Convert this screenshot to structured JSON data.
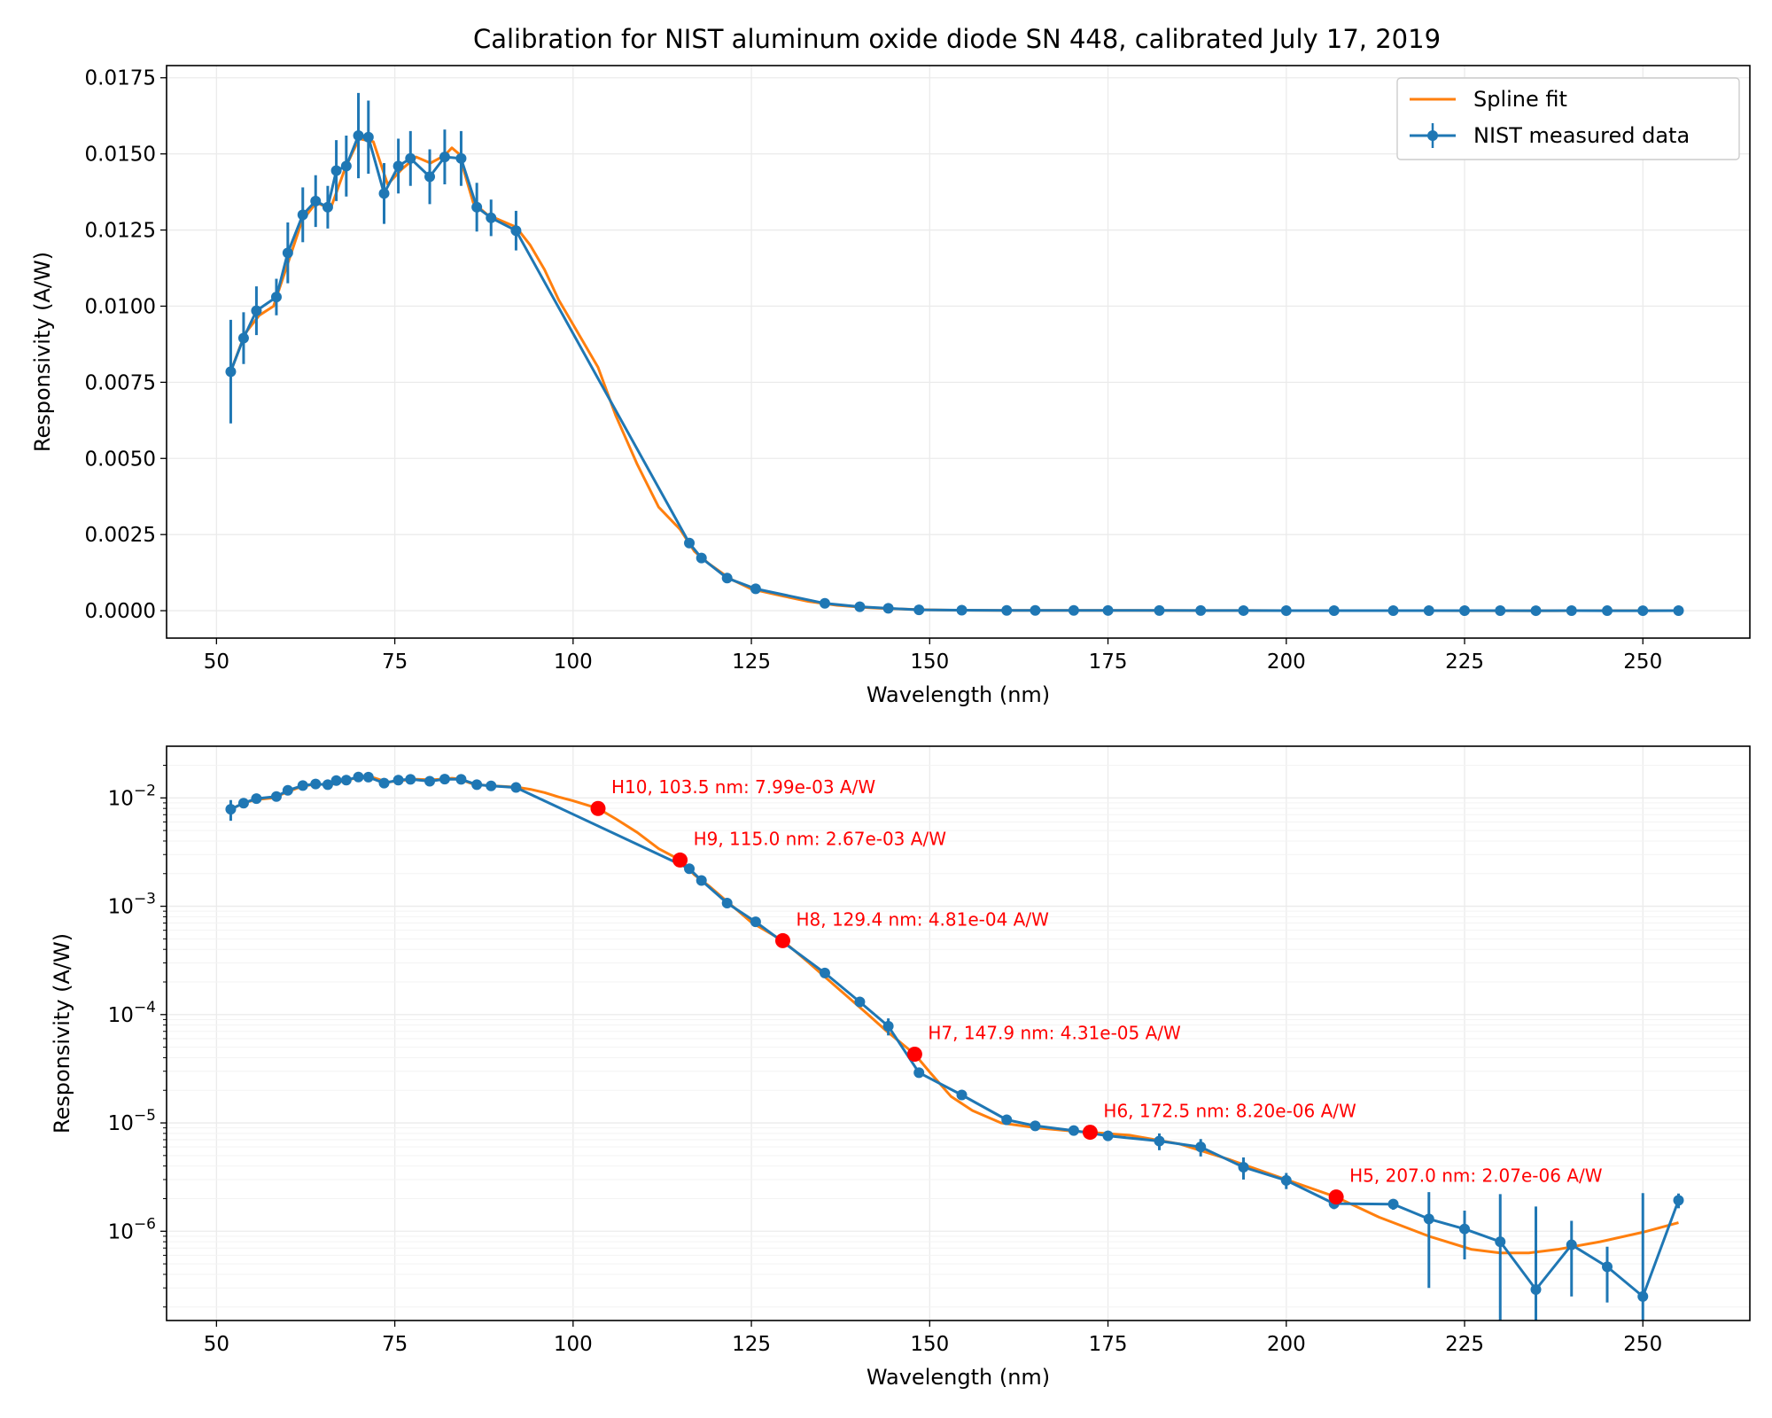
{
  "title": "Calibration for NIST aluminum oxide diode SN 448, calibrated July 17, 2019",
  "colors": {
    "spline": "#ff7f0e",
    "measured": "#1f77b4",
    "highlight": "#ff0000",
    "grid": "#ebebeb"
  },
  "chart_data": [
    {
      "type": "line",
      "scale": "linear",
      "xlabel": "Wavelength (nm)",
      "ylabel": "Responsivity (A/W)",
      "xlim": [
        43,
        265
      ],
      "ylim": [
        -0.0009,
        0.0179
      ],
      "xticks": [
        50,
        75,
        100,
        125,
        150,
        175,
        200,
        225,
        250
      ],
      "yticks": [
        0.0,
        0.0025,
        0.005,
        0.0075,
        0.01,
        0.0125,
        0.015,
        0.0175
      ],
      "ytick_labels": [
        "0.0000",
        "0.0025",
        "0.0050",
        "0.0075",
        "0.0100",
        "0.0125",
        "0.0150",
        "0.0175"
      ],
      "grid": true,
      "legend": {
        "position": "top-right",
        "entries": [
          "Spline fit",
          "NIST measured data"
        ]
      }
    },
    {
      "type": "line",
      "scale": "log",
      "xlabel": "Wavelength (nm)",
      "ylabel": "Responsivity (A/W)",
      "xlim": [
        43,
        265
      ],
      "ylim": [
        1.5e-07,
        0.03
      ],
      "xticks": [
        50,
        75,
        100,
        125,
        150,
        175,
        200,
        225,
        250
      ],
      "yticks": [
        1e-06,
        1e-05,
        0.0001,
        0.001,
        0.01
      ],
      "ytick_labels": [
        "10^-6",
        "10^-5",
        "10^-4",
        "10^-3",
        "10^-2"
      ],
      "grid": true,
      "annotations": [
        {
          "x": 103.5,
          "y": 0.00799,
          "text": "H10, 103.5 nm: 7.99e-03 A/W"
        },
        {
          "x": 115.0,
          "y": 0.00267,
          "text": "H9, 115.0 nm: 2.67e-03 A/W"
        },
        {
          "x": 129.4,
          "y": 0.000481,
          "text": "H8, 129.4 nm: 4.81e-04 A/W"
        },
        {
          "x": 147.9,
          "y": 4.31e-05,
          "text": "H7, 147.9 nm: 4.31e-05 A/W"
        },
        {
          "x": 172.5,
          "y": 8.2e-06,
          "text": "H6, 172.5 nm: 8.20e-06 A/W"
        },
        {
          "x": 207.0,
          "y": 2.07e-06,
          "text": "H5, 207.0 nm: 2.07e-06 A/W"
        }
      ]
    }
  ],
  "series": {
    "measured": {
      "name": "NIST measured data",
      "x": [
        52.0,
        53.8,
        55.6,
        58.4,
        60.0,
        62.1,
        63.9,
        65.6,
        66.8,
        68.2,
        69.9,
        71.3,
        73.5,
        75.5,
        77.2,
        79.9,
        82.0,
        84.3,
        86.5,
        88.5,
        92.0,
        116.3,
        118.0,
        121.6,
        125.6,
        135.3,
        140.2,
        144.2,
        148.5,
        154.5,
        160.8,
        164.8,
        170.2,
        175.0,
        182.2,
        188.0,
        194.0,
        200.0,
        206.7,
        215.0,
        220.0,
        225.0,
        230.0,
        235.0,
        240.0,
        245.0,
        250.0,
        255.0
      ],
      "y": [
        0.00785,
        0.00895,
        0.00985,
        0.0103,
        0.01175,
        0.013,
        0.01345,
        0.01325,
        0.01445,
        0.0146,
        0.0156,
        0.01555,
        0.0137,
        0.0146,
        0.01485,
        0.01425,
        0.0149,
        0.01485,
        0.01325,
        0.0129,
        0.01248,
        0.00222,
        0.00173,
        0.00107,
        0.000718,
        0.000242,
        0.000131,
        7.82e-05,
        2.91e-05,
        1.81e-05,
        1.07e-05,
        9.4e-06,
        8.5e-06,
        7.6e-06,
        6.8e-06,
        6e-06,
        3.9e-06,
        2.95e-06,
        1.8e-06,
        1.78e-06,
        1.3e-06,
        1.05e-06,
        8e-07,
        2.9e-07,
        7.5e-07,
        4.7e-07,
        2.5e-07,
        1.93e-06
      ],
      "err": [
        0.0017,
        0.00085,
        0.0008,
        0.0006,
        0.001,
        0.0009,
        0.00085,
        0.0007,
        0.001,
        0.001,
        0.0014,
        0.0012,
        0.001,
        0.0009,
        0.0009,
        0.0009,
        0.0009,
        0.0009,
        0.0008,
        0.0006,
        0.00065,
        5e-05,
        4e-05,
        3e-05,
        2e-05,
        8e-06,
        5e-06,
        1.4e-05,
        1.5e-06,
        8e-07,
        6e-07,
        5e-07,
        5e-07,
        5e-07,
        1.2e-06,
        1.1e-06,
        9e-07,
        5e-07,
        2e-07,
        2e-07,
        1e-06,
        5e-07,
        1.4e-06,
        1.4e-06,
        5e-07,
        2.5e-07,
        2e-06,
        3e-07
      ]
    },
    "spline": {
      "name": "Spline fit",
      "x": [
        52.0,
        54.0,
        56.0,
        58.0,
        60.0,
        62.0,
        64.0,
        66.0,
        68.0,
        70.0,
        72.0,
        74.0,
        76.0,
        78.0,
        80.0,
        82.0,
        83.0,
        84.0,
        86.0,
        88.0,
        90.0,
        92.0,
        94.0,
        96.0,
        98.0,
        100.0,
        103.5,
        106.0,
        109.0,
        112.0,
        115.0,
        117.0,
        119.0,
        122.0,
        125.0,
        129.4,
        133.0,
        137.0,
        141.0,
        144.0,
        147.9,
        150.0,
        153.0,
        156.0,
        160.0,
        165.0,
        170.0,
        172.5,
        178.0,
        185.0,
        192.0,
        200.0,
        207.0,
        213.0,
        220.0,
        226.0,
        230.0,
        234.0,
        238.0,
        244.0,
        250.0,
        255.0
      ],
      "y": [
        0.00785,
        0.0091,
        0.0097,
        0.01,
        0.0114,
        0.0128,
        0.0134,
        0.0132,
        0.0145,
        0.0155,
        0.0154,
        0.014,
        0.0145,
        0.0149,
        0.0147,
        0.01495,
        0.0152,
        0.015,
        0.0134,
        0.013,
        0.0128,
        0.0126,
        0.012,
        0.0112,
        0.0102,
        0.0094,
        0.00799,
        0.0064,
        0.0048,
        0.0034,
        0.00267,
        0.00195,
        0.00155,
        0.00105,
        0.00071,
        0.000481,
        0.000303,
        0.000178,
        0.000105,
        7e-05,
        4.31e-05,
        2.95e-05,
        1.75e-05,
        1.3e-05,
        1e-05,
        9e-06,
        8.4e-06,
        8.2e-06,
        7.7e-06,
        6.4e-06,
        4.6e-06,
        3e-06,
        2.07e-06,
        1.35e-06,
        9e-07,
        6.8e-07,
        6.3e-07,
        6.3e-07,
        6.8e-07,
        8e-07,
        9.8e-07,
        1.2e-06
      ]
    }
  }
}
